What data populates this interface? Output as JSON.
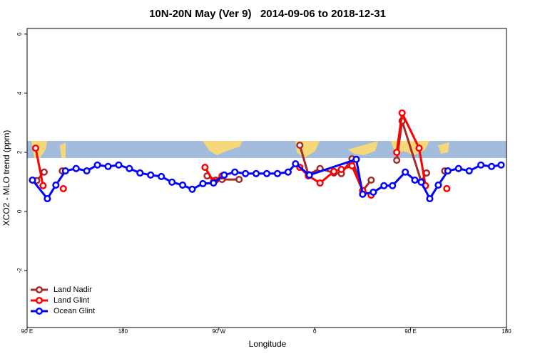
{
  "chart_data": {
    "type": "line",
    "title": "10N-20N May (Ver 9)   2014-09-06 to 2018-12-31",
    "x_label": "Longitude",
    "y_label": "XCO2 - MLO trend (ppm)",
    "xlim": [
      90,
      540
    ],
    "xticks": [
      {
        "value": 90,
        "label": "90 E"
      },
      180,
      {
        "value": 270,
        "label": "90 W"
      },
      {
        "value": 360,
        "label": "0"
      },
      {
        "value": 450,
        "label": "90 E"
      },
      {
        "value": 540,
        "label": "180"
      }
    ],
    "ylim": [
      -3.93,
      6.19
    ],
    "yticks": [
      -2,
      0,
      2,
      4,
      6
    ],
    "legend": "bottomleft",
    "series": [
      {
        "name": "Land Nadir",
        "color": "#a52a2a",
        "x": [
          99,
          106,
          null,
          123,
          null,
          259,
          267,
          273,
          289,
          null,
          346,
          354,
          365,
          378,
          385,
          395,
          405,
          413,
          null,
          437,
          442,
          460,
          465,
          null,
          482
        ],
        "values": [
          1.04,
          1.33,
          null,
          1.37,
          null,
          1.2,
          1.06,
          1.08,
          1.08,
          null,
          2.24,
          1.25,
          1.45,
          1.3,
          1.28,
          1.78,
          0.7,
          1.06,
          null,
          1.73,
          3.06,
          1.01,
          1.3,
          null,
          1.37
        ]
      },
      {
        "name": "Land Glint",
        "color": "#ff0000",
        "x": [
          98,
          105,
          null,
          124,
          null,
          257,
          265,
          273,
          null,
          346,
          354,
          365,
          378,
          385,
          395,
          405,
          413,
          null,
          437,
          442,
          458,
          464,
          null,
          484
        ],
        "values": [
          2.14,
          0.87,
          null,
          0.77,
          null,
          1.49,
          1.01,
          1.2,
          null,
          1.49,
          1.2,
          0.96,
          1.35,
          1.42,
          1.54,
          0.7,
          0.55,
          null,
          2.0,
          3.33,
          2.14,
          0.87,
          null,
          0.77
        ]
      },
      {
        "name": "Ocean Glint",
        "color": "#0000ff",
        "x": [
          95,
          109,
          117,
          126,
          136,
          146,
          156,
          166,
          176,
          186,
          196,
          206,
          216,
          226,
          236,
          245,
          255,
          265,
          275,
          285,
          295,
          305,
          315,
          325,
          335,
          342,
          355,
          399,
          405,
          415,
          425,
          433,
          445,
          454,
          460,
          468,
          476,
          485,
          495,
          505,
          516,
          526,
          535
        ],
        "values": [
          1.06,
          0.43,
          0.89,
          1.37,
          1.45,
          1.37,
          1.57,
          1.52,
          1.57,
          1.45,
          1.3,
          1.23,
          1.18,
          0.99,
          0.89,
          0.75,
          0.94,
          0.96,
          1.23,
          1.33,
          1.28,
          1.28,
          1.28,
          1.28,
          1.33,
          1.61,
          1.23,
          1.76,
          0.58,
          0.65,
          0.87,
          0.87,
          1.33,
          1.06,
          0.99,
          0.43,
          0.89,
          1.37,
          1.45,
          1.37,
          1.57,
          1.52,
          1.57
        ]
      }
    ]
  }
}
